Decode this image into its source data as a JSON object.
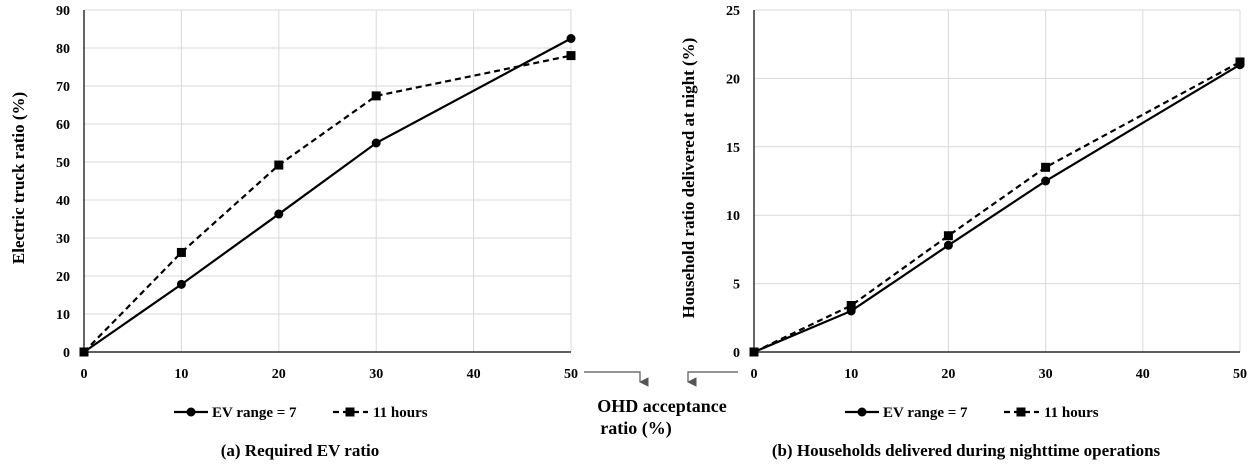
{
  "shared_label": [
    "OHD acceptance",
    "ratio (%)"
  ],
  "chart_data": [
    {
      "type": "line",
      "caption": "(a) Required EV ratio",
      "xlabel": "",
      "ylabel": "Electric truck ratio (%)",
      "x": [
        0,
        10,
        20,
        30,
        50
      ],
      "xticks": [
        0,
        10,
        20,
        30,
        40,
        50
      ],
      "xlim": [
        0,
        50
      ],
      "ylim": [
        0,
        90
      ],
      "yticks": [
        0,
        10,
        20,
        30,
        40,
        50,
        60,
        70,
        80,
        90
      ],
      "grid": true,
      "legend_position": "bottom",
      "series": [
        {
          "name": "EV range = 7",
          "style": "solid",
          "marker": "circle",
          "values": [
            0,
            17.8,
            36.3,
            55,
            82.5
          ]
        },
        {
          "name": "11 hours",
          "style": "dashed",
          "marker": "square",
          "values": [
            0,
            26.2,
            49.2,
            67.4,
            78
          ]
        }
      ]
    },
    {
      "type": "line",
      "caption": "(b) Households delivered during nighttime operations",
      "xlabel": "",
      "ylabel": "Household ratio delivered at night (%)",
      "x": [
        0,
        10,
        20,
        30,
        50
      ],
      "xticks": [
        0,
        10,
        20,
        30,
        40,
        50
      ],
      "xlim": [
        0,
        50
      ],
      "ylim": [
        0,
        25
      ],
      "yticks": [
        0,
        5,
        10,
        15,
        20,
        25
      ],
      "grid": true,
      "legend_position": "bottom",
      "series": [
        {
          "name": "EV range = 7",
          "style": "solid",
          "marker": "circle",
          "values": [
            0,
            3.0,
            7.8,
            12.5,
            21.0
          ]
        },
        {
          "name": "11 hours",
          "style": "dashed",
          "marker": "square",
          "values": [
            0,
            3.4,
            8.5,
            13.5,
            21.2
          ]
        }
      ]
    }
  ]
}
